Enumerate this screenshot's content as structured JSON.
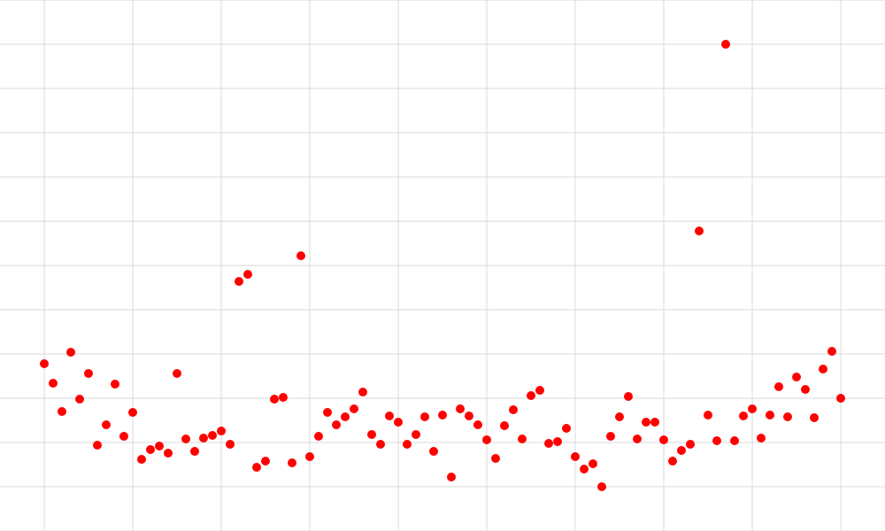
{
  "chart_data": {
    "type": "scatter",
    "x": [
      0,
      1,
      2,
      3,
      4,
      5,
      6,
      7,
      8,
      9,
      10,
      11,
      12,
      13,
      14,
      15,
      16,
      17,
      18,
      19,
      20,
      21,
      22,
      23,
      24,
      25,
      26,
      27,
      28,
      29,
      30,
      31,
      32,
      33,
      34,
      35,
      36,
      37,
      38,
      39,
      40,
      41,
      42,
      43,
      44,
      45,
      46,
      47,
      48,
      49,
      50,
      51,
      52,
      53,
      54,
      55,
      56,
      57,
      58,
      59,
      60,
      61,
      62,
      63,
      64,
      65,
      66,
      67,
      68,
      69,
      70,
      71,
      72,
      73,
      74,
      75,
      76,
      77,
      78,
      79,
      80,
      81,
      82,
      83,
      84,
      85,
      86,
      87,
      88,
      89,
      90
    ],
    "y": [
      2.78,
      2.34,
      1.7,
      3.04,
      1.98,
      2.56,
      0.94,
      1.4,
      2.32,
      1.14,
      1.68,
      0.62,
      0.84,
      0.92,
      0.76,
      2.56,
      1.08,
      0.8,
      1.1,
      1.16,
      1.26,
      0.96,
      4.64,
      4.8,
      0.44,
      0.58,
      1.98,
      2.02,
      0.54,
      5.22,
      0.68,
      1.14,
      1.68,
      1.4,
      1.58,
      1.76,
      2.14,
      1.18,
      0.96,
      1.6,
      1.46,
      0.96,
      1.18,
      1.58,
      0.8,
      1.62,
      0.22,
      1.76,
      1.6,
      1.4,
      1.06,
      0.64,
      1.38,
      1.74,
      1.08,
      2.06,
      2.18,
      0.98,
      1.02,
      1.32,
      0.68,
      0.4,
      0.52,
      0.0,
      1.14,
      1.58,
      2.04,
      1.08,
      1.46,
      1.46,
      1.06,
      0.58,
      0.82,
      0.96,
      5.78,
      1.62,
      1.04,
      10.0,
      1.04,
      1.6,
      1.76,
      1.1,
      1.62,
      2.26,
      1.58,
      2.48,
      2.2,
      1.56,
      2.66,
      3.06,
      2.0
    ],
    "xlim": [
      -5,
      95
    ],
    "ylim": [
      -1,
      11
    ],
    "grid": true,
    "marker_color": "#ff0000",
    "grid_color": "#d9d9d9",
    "background_color": "#ffffff"
  }
}
